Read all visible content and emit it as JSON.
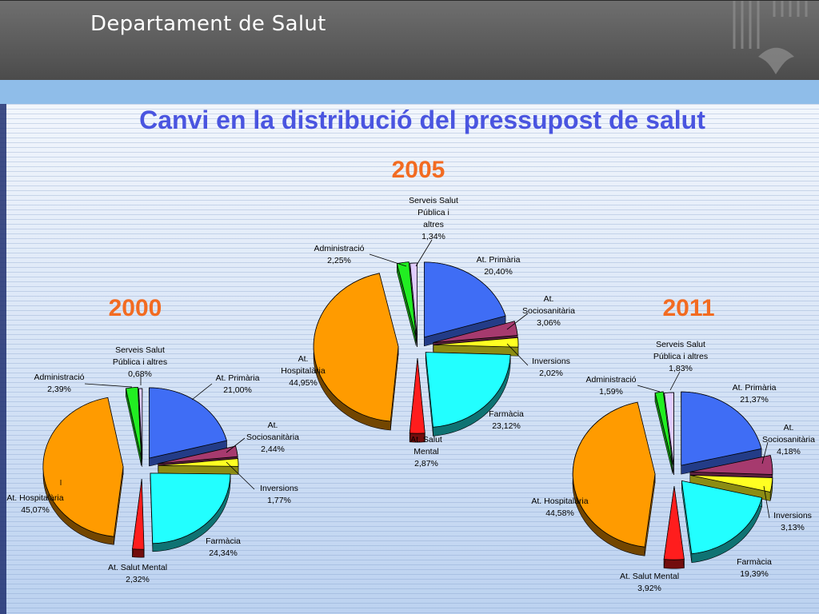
{
  "header": {
    "title": "Departament de Salut"
  },
  "main_title": "Canvi en la distribució del pressupost de salut",
  "chart_data": [
    {
      "type": "pie",
      "title": "2000",
      "slices": [
        {
          "label": "At. Primària",
          "value": 21.0,
          "text": "21,00%",
          "color": "#3f6df5"
        },
        {
          "label": "At. Sociosanitària",
          "value": 2.44,
          "text": "2,44%",
          "color": "#a63a6e"
        },
        {
          "label": "Inversions",
          "value": 1.77,
          "text": "1,77%",
          "color": "#ffff22"
        },
        {
          "label": "Farmàcia",
          "value": 24.34,
          "text": "24,34%",
          "color": "#22ffff"
        },
        {
          "label": "At. Salut Mental",
          "value": 2.32,
          "text": "2,32%",
          "color": "#ff1d1d"
        },
        {
          "label": "At. Hospitalària",
          "value": 45.07,
          "text": "45,07%",
          "color": "#ff9b00"
        },
        {
          "label": "Administració",
          "value": 2.39,
          "text": "2,39%",
          "color": "#22ee22"
        },
        {
          "label": "Serveis Salut Pública i altres",
          "value": 0.68,
          "text": "0,68%",
          "color": "#e0ccff"
        }
      ]
    },
    {
      "type": "pie",
      "title": "2005",
      "slices": [
        {
          "label": "At. Primària",
          "value": 20.4,
          "text": "20,40%",
          "color": "#3f6df5"
        },
        {
          "label": "At. Sociosanitària",
          "value": 3.06,
          "text": "3,06%",
          "color": "#a63a6e"
        },
        {
          "label": "Inversions",
          "value": 2.02,
          "text": "2,02%",
          "color": "#ffff22"
        },
        {
          "label": "Farmàcia",
          "value": 23.12,
          "text": "23,12%",
          "color": "#22ffff"
        },
        {
          "label": "At. Salut Mental",
          "value": 2.87,
          "text": "2,87%",
          "color": "#ff1d1d"
        },
        {
          "label": "At. Hospitalària",
          "value": 44.95,
          "text": "44,95%",
          "color": "#ff9b00"
        },
        {
          "label": "Administració",
          "value": 2.25,
          "text": "2,25%",
          "color": "#22ee22"
        },
        {
          "label": "Serveis Salut Pública i altres",
          "value": 1.34,
          "text": "1,34%",
          "color": "#e0ccff"
        }
      ]
    },
    {
      "type": "pie",
      "title": "2011",
      "slices": [
        {
          "label": "At. Primària",
          "value": 21.37,
          "text": "21,37%",
          "color": "#3f6df5"
        },
        {
          "label": "At. Sociosanitària",
          "value": 4.18,
          "text": "4,18%",
          "color": "#a63a6e"
        },
        {
          "label": "Inversions",
          "value": 3.13,
          "text": "3,13%",
          "color": "#ffff22"
        },
        {
          "label": "Farmàcia",
          "value": 19.39,
          "text": "19,39%",
          "color": "#22ffff"
        },
        {
          "label": "At. Salut Mental",
          "value": 3.92,
          "text": "3,92%",
          "color": "#ff1d1d"
        },
        {
          "label": "At. Hospitalària",
          "value": 44.58,
          "text": "44,58%",
          "color": "#ff9b00"
        },
        {
          "label": "Administració",
          "value": 1.59,
          "text": "1,59%",
          "color": "#22ee22"
        },
        {
          "label": "Serveis Salut Pública i altres",
          "value": 1.83,
          "text": "1,83%",
          "color": "#e0ccff"
        }
      ]
    }
  ]
}
